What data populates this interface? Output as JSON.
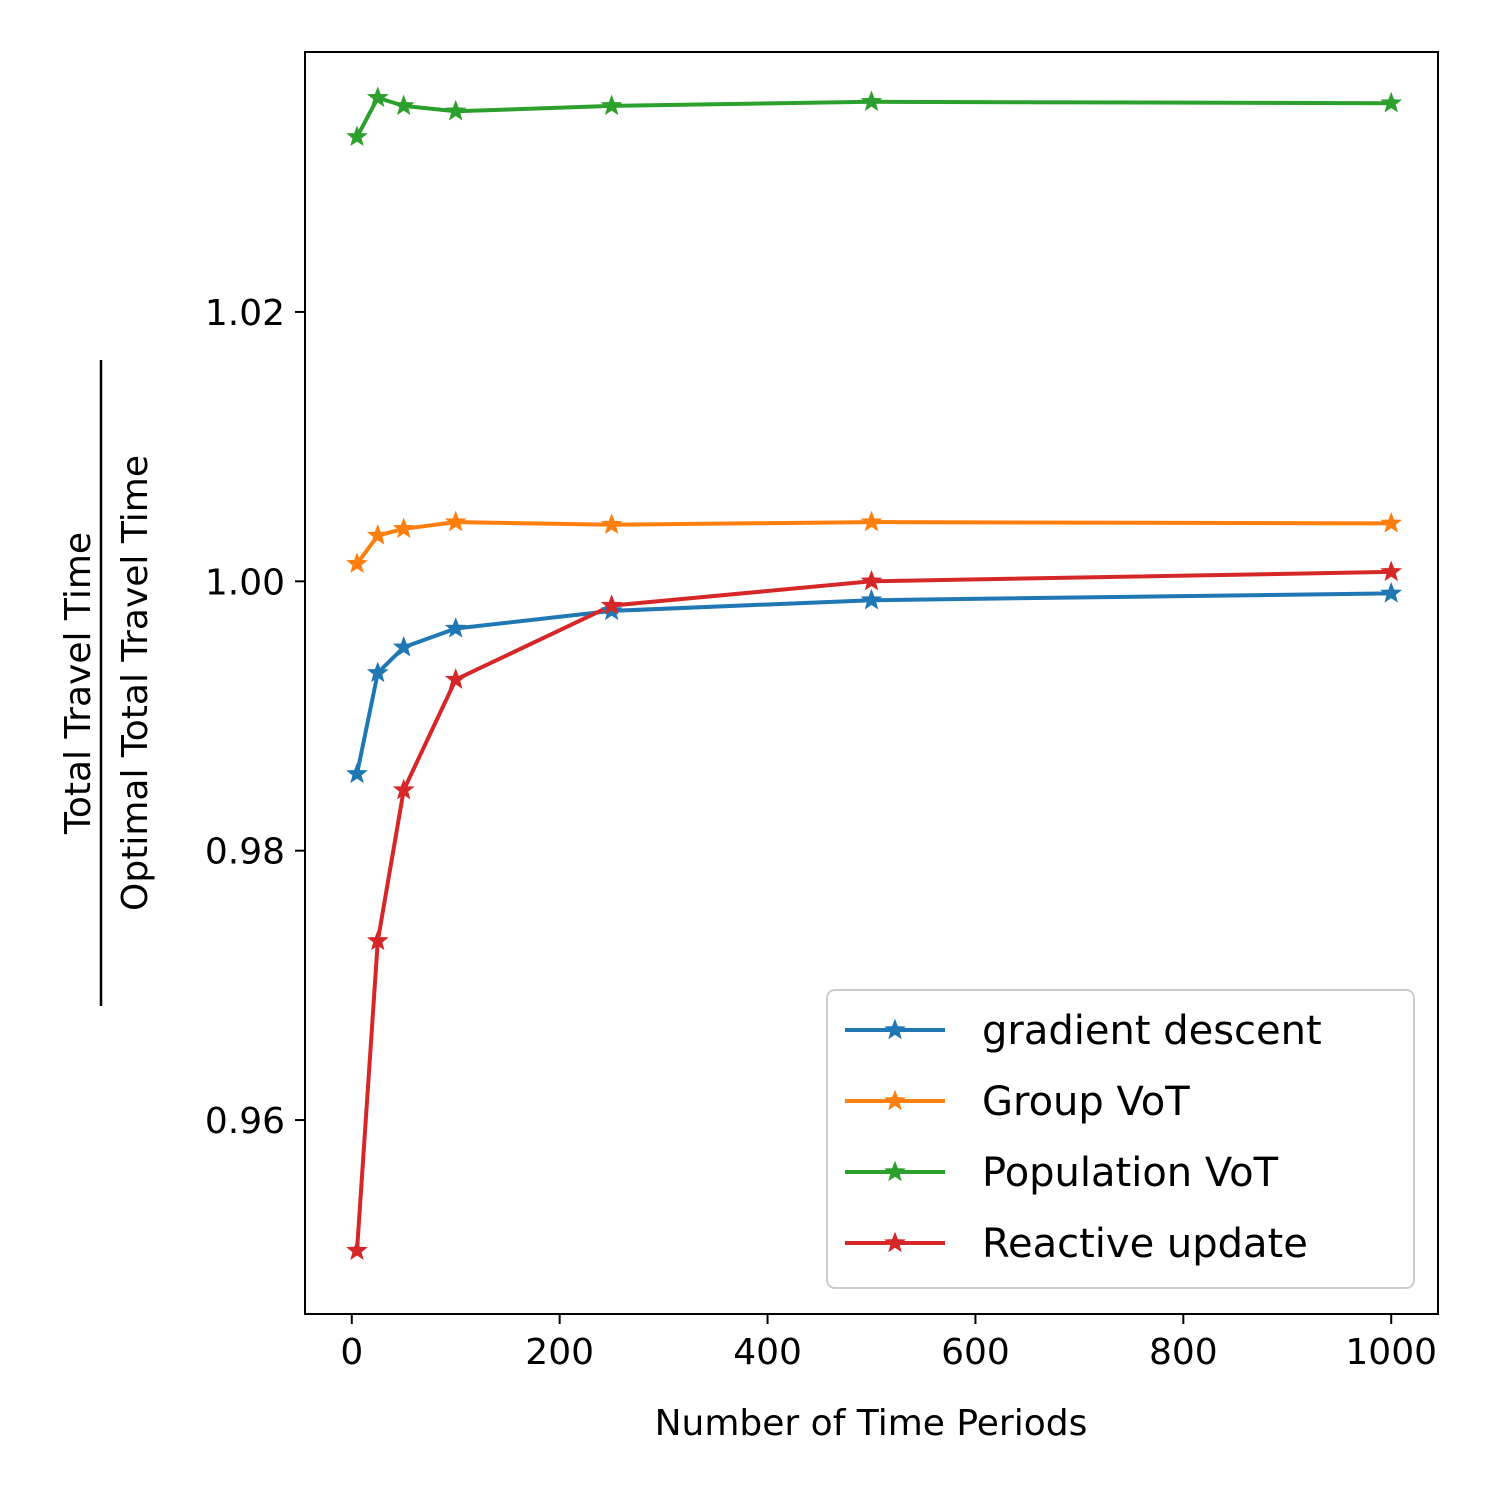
{
  "chart_data": {
    "type": "line",
    "xlabel": "Number of Time Periods",
    "ylabel_numerator": "Total Travel Time",
    "ylabel_denominator": "Optimal Total Travel Time",
    "xlim": [
      -45,
      1045
    ],
    "ylim": [
      0.9456,
      1.0393
    ],
    "xticks": [
      0,
      200,
      400,
      600,
      800,
      1000
    ],
    "xtick_labels": [
      "0",
      "200",
      "400",
      "600",
      "800",
      "1000"
    ],
    "yticks": [
      0.96,
      0.98,
      1.0,
      1.02
    ],
    "ytick_labels": [
      "0.96",
      "0.98",
      "1.00",
      "1.02"
    ],
    "grid": false,
    "legend_position": "lower-right",
    "marker": "star",
    "x": [
      5,
      25,
      50,
      100,
      250,
      500,
      1000
    ],
    "series": [
      {
        "name": "gradient descent",
        "color": "#1f77b4",
        "values": [
          0.9857,
          0.9932,
          0.9951,
          0.9965,
          0.9978,
          0.9986,
          0.9991
        ]
      },
      {
        "name": "Group VoT",
        "color": "#ff7f0e",
        "values": [
          1.0013,
          1.0034,
          1.0039,
          1.0044,
          1.0042,
          1.0044,
          1.0043
        ]
      },
      {
        "name": "Population VoT",
        "color": "#2ca02c",
        "values": [
          1.033,
          1.0359,
          1.0353,
          1.0349,
          1.0353,
          1.0356,
          1.0355
        ]
      },
      {
        "name": "Reactive update",
        "color": "#d62728",
        "values": [
          0.9503,
          0.9733,
          0.9845,
          0.9927,
          0.9982,
          1.0,
          1.0007
        ]
      }
    ]
  }
}
